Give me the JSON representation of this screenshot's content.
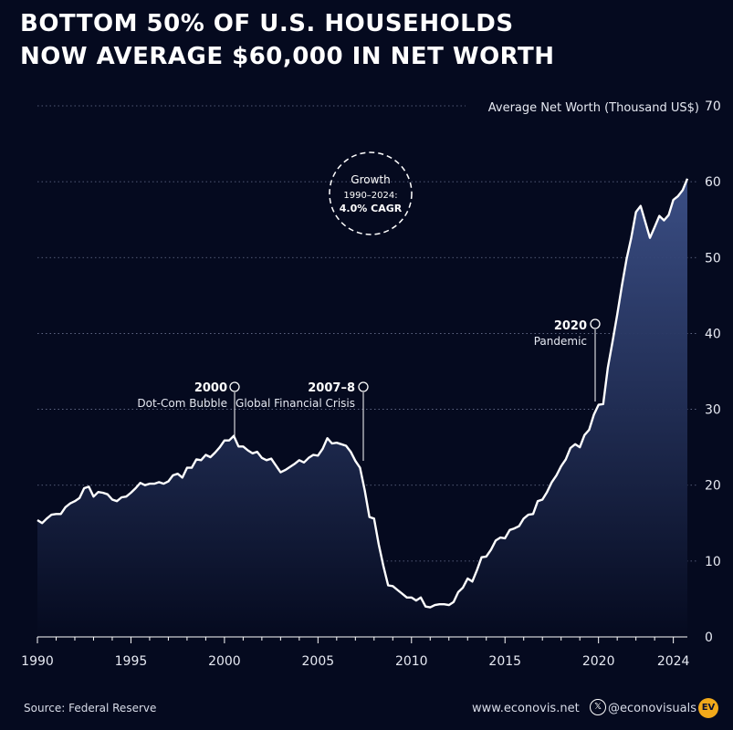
{
  "title_lines": [
    "BOTTOM 50% OF U.S. HOUSEHOLDS",
    "NOW AVERAGE $60,000 IN NET WORTH"
  ],
  "footer": {
    "source": "Source: Federal Reserve",
    "website": "www.econovis.net",
    "social": "@econovisuals",
    "x_icon": "x-logo-icon",
    "logo_text": "EV"
  },
  "colors": {
    "background": "#050a1f",
    "line": "#ffffff",
    "area_top": "#3d5189",
    "area_bottom": "#050a1f",
    "grid": "#6b7391",
    "logo": "#f2a91a"
  },
  "badge": {
    "line1": "Growth",
    "line2": "1990–2024:",
    "line3": "4.0% CAGR"
  },
  "chart_data": {
    "type": "area",
    "ylabel": "Average Net Worth (Thousand US$)",
    "xlim": [
      1990,
      2024.75
    ],
    "ylim": [
      0,
      70
    ],
    "y_ticks": [
      0,
      10,
      20,
      30,
      40,
      50,
      60,
      70
    ],
    "x_ticks": [
      1990,
      1995,
      2000,
      2005,
      2010,
      2015,
      2020,
      2024
    ],
    "grid": "horizontal dotted",
    "series": [
      {
        "x": [
          1990,
          1990.25,
          1990.5,
          1990.75,
          1991,
          1991.25,
          1991.5,
          1991.75,
          1992,
          1992.25,
          1992.5,
          1992.75,
          1993,
          1993.25,
          1993.5,
          1993.75,
          1994,
          1994.25,
          1994.5,
          1994.75,
          1995,
          1995.25,
          1995.5,
          1995.75,
          1996,
          1996.25,
          1996.5,
          1996.75,
          1997,
          1997.25,
          1997.5,
          1997.75,
          1998,
          1998.25,
          1998.5,
          1998.75,
          1999,
          1999.25,
          1999.5,
          1999.75,
          2000,
          2000.25,
          2000.5,
          2000.75,
          2001,
          2001.25,
          2001.5,
          2001.75,
          2002,
          2002.25,
          2002.5,
          2002.75,
          2003,
          2003.25,
          2003.5,
          2003.75,
          2004,
          2004.25,
          2004.5,
          2004.75,
          2005,
          2005.25,
          2005.5,
          2005.75,
          2006,
          2006.25,
          2006.5,
          2006.75,
          2007,
          2007.25,
          2007.5,
          2007.75,
          2008,
          2008.25,
          2008.5,
          2008.75,
          2009,
          2009.25,
          2009.5,
          2009.75,
          2010,
          2010.25,
          2010.5,
          2010.75,
          2011,
          2011.25,
          2011.5,
          2011.75,
          2012,
          2012.25,
          2012.5,
          2012.75,
          2013,
          2013.25,
          2013.5,
          2013.75,
          2014,
          2014.25,
          2014.5,
          2014.75,
          2015,
          2015.25,
          2015.5,
          2015.75,
          2016,
          2016.25,
          2016.5,
          2016.75,
          2017,
          2017.25,
          2017.5,
          2017.75,
          2018,
          2018.25,
          2018.5,
          2018.75,
          2019,
          2019.25,
          2019.5,
          2019.75,
          2020,
          2020.25,
          2020.5,
          2020.75,
          2021,
          2021.25,
          2021.5,
          2021.75,
          2022,
          2022.25,
          2022.5,
          2022.75,
          2023,
          2023.25,
          2023.5,
          2023.75,
          2024,
          2024.25,
          2024.5,
          2024.75
        ],
        "y": [
          15.4,
          15.0,
          15.6,
          16.1,
          16.2,
          16.2,
          17.1,
          17.6,
          17.9,
          18.3,
          19.6,
          19.8,
          18.5,
          19.1,
          19.0,
          18.8,
          18.1,
          17.9,
          18.4,
          18.5,
          19.0,
          19.6,
          20.3,
          20.0,
          20.2,
          20.2,
          20.4,
          20.2,
          20.5,
          21.3,
          21.5,
          21.0,
          22.3,
          22.3,
          23.4,
          23.3,
          24.0,
          23.7,
          24.3,
          25.0,
          25.9,
          25.9,
          26.5,
          25.1,
          25.1,
          24.6,
          24.2,
          24.4,
          23.6,
          23.3,
          23.5,
          22.6,
          21.7,
          22.0,
          22.4,
          22.8,
          23.3,
          23.0,
          23.6,
          24.0,
          23.9,
          24.8,
          26.2,
          25.5,
          25.6,
          25.4,
          25.2,
          24.4,
          23.2,
          22.3,
          19.3,
          15.8,
          15.6,
          12.2,
          9.3,
          6.8,
          6.7,
          6.2,
          5.7,
          5.2,
          5.2,
          4.8,
          5.2,
          4.0,
          3.9,
          4.2,
          4.3,
          4.3,
          4.2,
          4.6,
          5.9,
          6.5,
          7.7,
          7.3,
          8.8,
          10.5,
          10.6,
          11.5,
          12.7,
          13.1,
          13.0,
          14.1,
          14.3,
          14.6,
          15.6,
          16.1,
          16.2,
          17.9,
          18.1,
          19.1,
          20.4,
          21.3,
          22.5,
          23.4,
          24.9,
          25.4,
          25.0,
          26.6,
          27.3,
          29.3,
          30.6,
          30.7,
          35.5,
          38.9,
          42.5,
          46.3,
          49.8,
          52.6,
          56.0,
          56.8,
          54.7,
          52.6,
          54.0,
          55.5,
          54.9,
          55.6,
          57.6,
          58.1,
          58.9,
          60.4
        ]
      }
    ],
    "annotations": [
      {
        "year": "2000",
        "label": "Dot-Com Bubble"
      },
      {
        "year": "2007–8",
        "label": "Global Financial Crisis"
      },
      {
        "year": "2020",
        "label": "Pandemic"
      }
    ]
  }
}
